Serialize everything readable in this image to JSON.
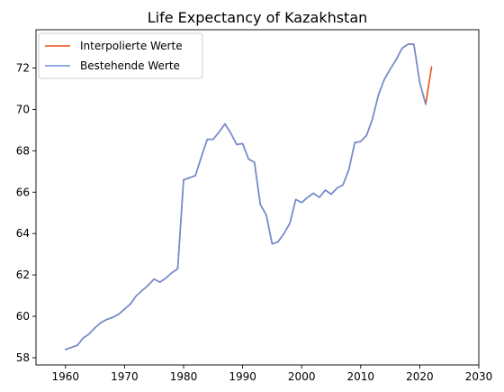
{
  "chart_data": {
    "type": "line",
    "title": "Life Expectancy of Kazakhstan",
    "xlabel": "",
    "ylabel": "",
    "xlim": [
      1955,
      2030
    ],
    "ylim": [
      57.65,
      73.85
    ],
    "xticks": [
      1960,
      1970,
      1980,
      1990,
      2000,
      2010,
      2020,
      2030
    ],
    "yticks": [
      58,
      60,
      62,
      64,
      66,
      68,
      70,
      72
    ],
    "grid": false,
    "legend_position": "top-left",
    "series": [
      {
        "name": "Interpolierte Werte",
        "color": "#e8501a",
        "x": [
          1960,
          1961,
          1962,
          1963,
          1964,
          1965,
          1966,
          1967,
          1968,
          1969,
          1970,
          1971,
          1972,
          1973,
          1974,
          1975,
          1976,
          1977,
          1978,
          1979,
          1980,
          1981,
          1982,
          1983,
          1984,
          1985,
          1986,
          1987,
          1988,
          1989,
          1990,
          1991,
          1992,
          1993,
          1994,
          1995,
          1996,
          1997,
          1998,
          1999,
          2000,
          2001,
          2002,
          2003,
          2004,
          2005,
          2006,
          2007,
          2008,
          2009,
          2010,
          2011,
          2012,
          2013,
          2014,
          2015,
          2016,
          2017,
          2018,
          2019,
          2020,
          2021,
          2022
        ],
        "y": [
          58.4,
          58.5,
          58.6,
          58.95,
          59.15,
          59.45,
          59.7,
          59.85,
          59.95,
          60.1,
          60.35,
          60.6,
          61.0,
          61.25,
          61.5,
          61.8,
          61.65,
          61.85,
          62.1,
          62.3,
          66.6,
          66.7,
          66.8,
          67.7,
          68.55,
          68.55,
          68.9,
          69.3,
          68.85,
          68.3,
          68.35,
          67.6,
          67.45,
          65.4,
          64.9,
          63.5,
          63.6,
          64.0,
          64.5,
          65.65,
          65.5,
          65.75,
          65.95,
          65.75,
          66.1,
          65.9,
          66.2,
          66.35,
          67.1,
          68.4,
          68.45,
          68.75,
          69.55,
          70.7,
          71.45,
          71.95,
          72.4,
          72.95,
          73.15,
          73.15,
          71.3,
          70.25,
          72.05
        ]
      },
      {
        "name": "Bestehende Werte",
        "color": "#6b8fd8",
        "x": [
          1960,
          1961,
          1962,
          1963,
          1964,
          1965,
          1966,
          1967,
          1968,
          1969,
          1970,
          1971,
          1972,
          1973,
          1974,
          1975,
          1976,
          1977,
          1978,
          1979,
          1980,
          1981,
          1982,
          1983,
          1984,
          1985,
          1986,
          1987,
          1988,
          1989,
          1990,
          1991,
          1992,
          1993,
          1994,
          1995,
          1996,
          1997,
          1998,
          1999,
          2000,
          2001,
          2002,
          2003,
          2004,
          2005,
          2006,
          2007,
          2008,
          2009,
          2010,
          2011,
          2012,
          2013,
          2014,
          2015,
          2016,
          2017,
          2018,
          2019,
          2020,
          2021
        ],
        "y": [
          58.4,
          58.5,
          58.6,
          58.95,
          59.15,
          59.45,
          59.7,
          59.85,
          59.95,
          60.1,
          60.35,
          60.6,
          61.0,
          61.25,
          61.5,
          61.8,
          61.65,
          61.85,
          62.1,
          62.3,
          66.6,
          66.7,
          66.8,
          67.7,
          68.55,
          68.55,
          68.9,
          69.3,
          68.85,
          68.3,
          68.35,
          67.6,
          67.45,
          65.4,
          64.9,
          63.5,
          63.6,
          64.0,
          64.5,
          65.65,
          65.5,
          65.75,
          65.95,
          65.75,
          66.1,
          65.9,
          66.2,
          66.35,
          67.1,
          68.4,
          68.45,
          68.75,
          69.55,
          70.7,
          71.45,
          71.95,
          72.4,
          72.95,
          73.15,
          73.15,
          71.3,
          70.25
        ]
      }
    ]
  }
}
